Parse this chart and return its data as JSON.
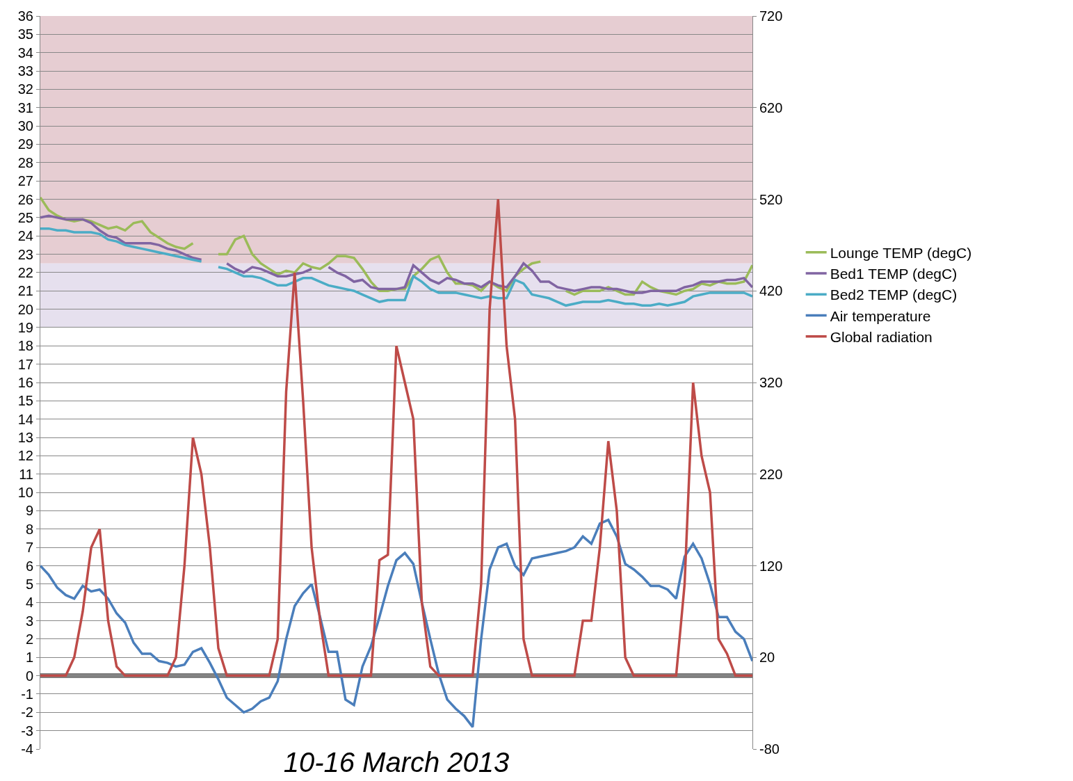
{
  "chart_data": {
    "type": "line",
    "xlabel": "10-16 March 2013",
    "categories": [
      null,
      null,
      null,
      null,
      null,
      null,
      null,
      null,
      null,
      null,
      null,
      null,
      null,
      null,
      null,
      null,
      null,
      null,
      null,
      null,
      null,
      null,
      null,
      null,
      null,
      null,
      null,
      null,
      null,
      null,
      null,
      null,
      null,
      null,
      null,
      null,
      null,
      null,
      null,
      null,
      null,
      null,
      null,
      null,
      null,
      null,
      null,
      null,
      null,
      null,
      null,
      null,
      null,
      null,
      null,
      null,
      null,
      null,
      null,
      null,
      null,
      null,
      null,
      null,
      null,
      null,
      null,
      null,
      null,
      null,
      null,
      null,
      null,
      null,
      null,
      null,
      null,
      null,
      null,
      null,
      null,
      null,
      null,
      null,
      null
    ],
    "series": [
      {
        "name": "Lounge TEMP (degC)",
        "color": "#9bbb59",
        "values": [
          26.1,
          25.4,
          25.1,
          24.9,
          24.8,
          24.9,
          24.8,
          24.6,
          24.4,
          24.5,
          24.3,
          24.7,
          24.8,
          24.2,
          23.9,
          23.6,
          23.4,
          23.3,
          23.6,
          null,
          null,
          23.0,
          23.0,
          23.8,
          24.0,
          23.0,
          22.5,
          22.2,
          21.9,
          22.1,
          22.0,
          22.5,
          22.3,
          22.2,
          22.5,
          22.9,
          22.9,
          22.8,
          22.2,
          21.5,
          21.0,
          21.0,
          21.1,
          21.1,
          21.8,
          22.2,
          22.7,
          22.9,
          22.0,
          21.4,
          21.4,
          21.3,
          21.0,
          21.5,
          21.2,
          21.0,
          21.8,
          22.2,
          22.5,
          22.6,
          null,
          null,
          21.0,
          20.8,
          21.0,
          21.0,
          21.0,
          21.2,
          21.0,
          20.8,
          20.8,
          21.5,
          21.2,
          21.0,
          20.9,
          20.8,
          21.0,
          21.1,
          21.4,
          21.3,
          21.5,
          21.4,
          21.4,
          21.5,
          22.4
        ]
      },
      {
        "name": "Bed1 TEMP (degC)",
        "color": "#8064a2",
        "values": [
          25.0,
          25.1,
          25.0,
          24.9,
          24.9,
          24.9,
          24.7,
          24.3,
          24.0,
          23.9,
          23.6,
          23.6,
          23.6,
          23.6,
          23.5,
          23.3,
          23.2,
          23.0,
          22.8,
          22.7,
          null,
          null,
          22.5,
          22.2,
          22.0,
          22.3,
          22.2,
          22.0,
          21.8,
          21.8,
          21.9,
          22.0,
          22.2,
          null,
          22.3,
          22.0,
          21.8,
          21.5,
          21.6,
          21.2,
          21.1,
          21.1,
          21.1,
          21.2,
          22.4,
          22.0,
          21.6,
          21.4,
          21.7,
          21.6,
          21.4,
          21.4,
          21.2,
          21.5,
          21.3,
          21.2,
          21.8,
          22.5,
          22.1,
          21.5,
          21.5,
          21.2,
          21.1,
          21.0,
          21.1,
          21.2,
          21.2,
          21.1,
          21.1,
          21.0,
          20.9,
          20.9,
          21.0,
          21.0,
          21.0,
          21.0,
          21.2,
          21.3,
          21.5,
          21.5,
          21.5,
          21.6,
          21.6,
          21.7,
          21.2
        ]
      },
      {
        "name": "Bed2 TEMP (degC)",
        "color": "#4bacc6",
        "values": [
          24.4,
          24.4,
          24.3,
          24.3,
          24.2,
          24.2,
          24.2,
          24.1,
          23.8,
          23.7,
          23.5,
          23.4,
          23.3,
          23.2,
          23.1,
          23.0,
          22.9,
          22.8,
          22.7,
          22.6,
          null,
          22.3,
          22.2,
          22.0,
          21.8,
          21.8,
          21.7,
          21.5,
          21.3,
          21.3,
          21.5,
          21.7,
          21.7,
          21.5,
          21.3,
          21.2,
          21.1,
          21.0,
          20.8,
          20.6,
          20.4,
          20.5,
          20.5,
          20.5,
          21.8,
          21.5,
          21.1,
          20.9,
          20.9,
          20.9,
          20.8,
          20.7,
          20.6,
          20.7,
          20.6,
          20.6,
          21.6,
          21.4,
          20.8,
          20.7,
          20.6,
          20.4,
          20.2,
          20.3,
          20.4,
          20.4,
          20.4,
          20.5,
          20.4,
          20.3,
          20.3,
          20.2,
          20.2,
          20.3,
          20.2,
          20.3,
          20.4,
          20.7,
          20.8,
          20.9,
          20.9,
          20.9,
          20.9,
          20.9,
          20.7
        ]
      },
      {
        "name": "Air temperature",
        "color": "#4a7ebb",
        "values": [
          6,
          5.5,
          4.8,
          4.4,
          4.2,
          4.9,
          4.6,
          4.7,
          4.2,
          3.4,
          2.9,
          1.8,
          1.2,
          1.2,
          0.8,
          0.7,
          0.5,
          0.6,
          1.3,
          1.5,
          0.7,
          -0.2,
          -1.2,
          -1.6,
          -2,
          -1.8,
          -1.4,
          -1.2,
          -0.3,
          2.0,
          3.8,
          4.5,
          5.0,
          3.2,
          1.3,
          1.3,
          -1.3,
          -1.6,
          0.5,
          1.6,
          3.2,
          4.9,
          6.3,
          6.7,
          6.1,
          4.0,
          2.0,
          0.1,
          -1.3,
          -1.8,
          -2.2,
          -2.8,
          2,
          5.8,
          7,
          7.2,
          6.0,
          5.5,
          6.4,
          6.5,
          6.6,
          6.7,
          6.8,
          7.0,
          7.6,
          7.2,
          8.3,
          8.5,
          7.6,
          6.1,
          5.8,
          5.4,
          4.9,
          4.9,
          4.7,
          4.2,
          6.5,
          7.2,
          6.4,
          5.0,
          3.2,
          3.2,
          2.4,
          2.0,
          0.8
        ]
      },
      {
        "name": "Global radiation",
        "color": "#be4b48",
        "axis": "y2",
        "values": [
          0,
          0,
          0,
          0,
          20,
          70,
          140,
          160,
          60,
          10,
          0,
          0,
          0,
          0,
          0,
          0,
          20,
          120,
          260,
          220,
          140,
          30,
          0,
          0,
          0,
          0,
          0,
          0,
          40,
          310,
          440,
          300,
          140,
          60,
          0,
          0,
          0,
          0,
          0,
          0,
          126,
          132,
          360,
          320,
          280,
          80,
          10,
          0,
          0,
          0,
          0,
          0,
          100,
          400,
          520,
          360,
          280,
          40,
          0,
          0,
          0,
          0,
          0,
          0,
          60,
          60,
          140,
          256,
          180,
          20,
          0,
          0,
          0,
          0,
          0,
          0,
          100,
          320,
          240,
          200,
          40,
          24,
          0,
          0,
          0
        ]
      }
    ],
    "ylim": [
      -4,
      36
    ],
    "yticks": [
      -4,
      -3,
      -2,
      -1,
      0,
      1,
      2,
      3,
      4,
      5,
      6,
      7,
      8,
      9,
      10,
      11,
      12,
      13,
      14,
      15,
      16,
      17,
      18,
      19,
      20,
      21,
      22,
      23,
      24,
      25,
      26,
      27,
      28,
      29,
      30,
      31,
      32,
      33,
      34,
      35,
      36
    ],
    "y2lim": [
      -80,
      720
    ],
    "y2ticks": [
      -80,
      20,
      120,
      220,
      320,
      420,
      520,
      620,
      720
    ],
    "bands": [
      {
        "axis": "y",
        "from": 22.5,
        "to": 36,
        "color": "#e6cdd2"
      },
      {
        "axis": "y",
        "from": 19,
        "to": 22.5,
        "color": "#e6e0ee"
      }
    ],
    "ref_lines": [
      {
        "axis": "y",
        "value": 0,
        "color": "#808080"
      }
    ],
    "grid": "y",
    "legend": "right"
  }
}
